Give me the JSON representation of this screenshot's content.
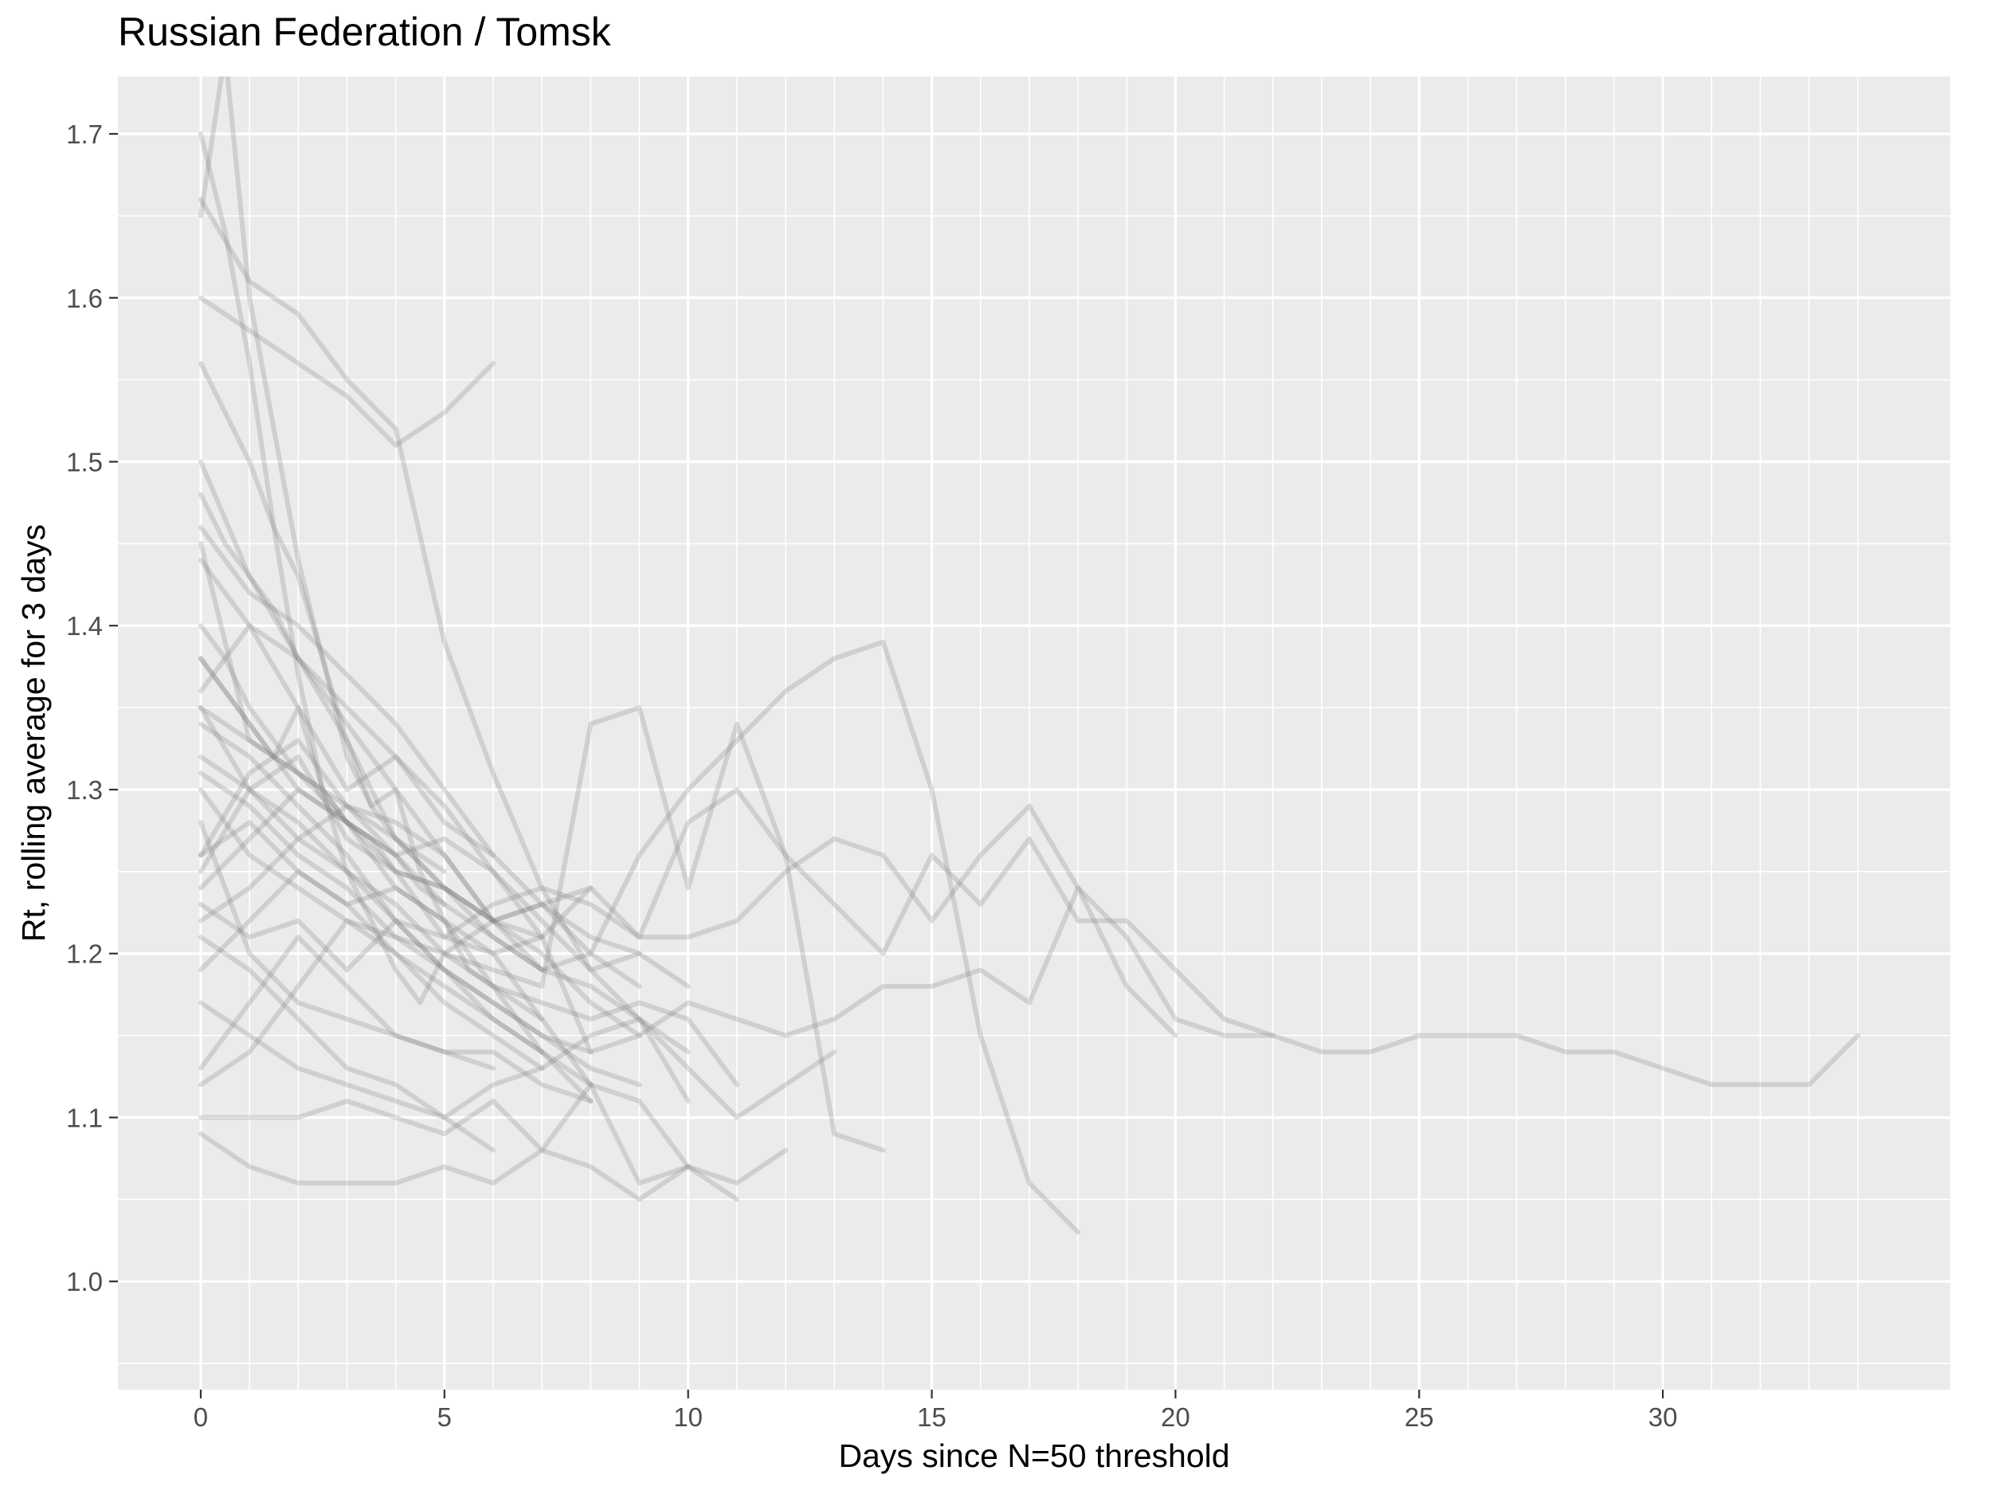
{
  "chart_data": {
    "type": "line",
    "title": "Russian Federation / Tomsk",
    "xlabel": "Days since N=50 threshold",
    "ylabel": "Rt, rolling average for 3 days",
    "xlim": [
      -1.7,
      35.9
    ],
    "ylim": [
      0.934,
      1.735
    ],
    "xticks": [
      0,
      5,
      10,
      15,
      20,
      25,
      30
    ],
    "xtick_labels": [
      "0",
      "5",
      "10",
      "15",
      "20",
      "25",
      "30"
    ],
    "yticks": [
      1.0,
      1.1,
      1.2,
      1.3,
      1.4,
      1.5,
      1.6,
      1.7
    ],
    "ytick_labels": [
      "1.0",
      "1.1",
      "1.2",
      "1.3",
      "1.4",
      "1.5",
      "1.6",
      "1.7"
    ],
    "grid": true,
    "legend": "none",
    "colors": {
      "panel": "#ebebeb",
      "grid": "#ffffff",
      "line": "#808080"
    },
    "series": [
      {
        "x": [
          0,
          1,
          2,
          3,
          4,
          5,
          6,
          7,
          8,
          9,
          10,
          11,
          12,
          13,
          14,
          15,
          16,
          17,
          18,
          19,
          20,
          21,
          22,
          23,
          24,
          25,
          26,
          27,
          28,
          29,
          30,
          31,
          32,
          33,
          34
        ],
        "y": [
          1.45,
          1.33,
          1.31,
          1.28,
          1.25,
          1.21,
          1.23,
          1.24,
          1.23,
          1.21,
          1.21,
          1.22,
          1.25,
          1.27,
          1.26,
          1.22,
          1.26,
          1.29,
          1.24,
          1.21,
          1.16,
          1.15,
          1.15,
          1.14,
          1.14,
          1.15,
          1.15,
          1.15,
          1.14,
          1.14,
          1.13,
          1.12,
          1.12,
          1.12,
          1.15
        ]
      },
      {
        "x": [
          0,
          1,
          2,
          3,
          4,
          5,
          6,
          7,
          8,
          9,
          10,
          11,
          12,
          13,
          14,
          15,
          16,
          17,
          18,
          19,
          20,
          21,
          22
        ],
        "y": [
          1.23,
          1.21,
          1.22,
          1.19,
          1.22,
          1.21,
          1.2,
          1.21,
          1.24,
          1.21,
          1.28,
          1.3,
          1.26,
          1.23,
          1.2,
          1.26,
          1.23,
          1.27,
          1.22,
          1.22,
          1.19,
          1.16,
          1.15
        ]
      },
      {
        "x": [
          0,
          1,
          2,
          3,
          4,
          5,
          6,
          7,
          8,
          9,
          10,
          11,
          12,
          13,
          14,
          15,
          16,
          17,
          18
        ],
        "y": [
          1.5,
          1.43,
          1.38,
          1.33,
          1.27,
          1.24,
          1.21,
          1.19,
          1.2,
          1.26,
          1.3,
          1.33,
          1.36,
          1.38,
          1.39,
          1.3,
          1.15,
          1.06,
          1.03
        ]
      },
      {
        "x": [
          0,
          1,
          2,
          3,
          4,
          5,
          6,
          7,
          8,
          9,
          10,
          11,
          12,
          13,
          14,
          15,
          16,
          17,
          18,
          19,
          20
        ],
        "y": [
          1.35,
          1.3,
          1.28,
          1.25,
          1.22,
          1.19,
          1.17,
          1.15,
          1.14,
          1.15,
          1.17,
          1.16,
          1.15,
          1.16,
          1.18,
          1.18,
          1.19,
          1.17,
          1.24,
          1.18,
          1.15
        ]
      },
      {
        "x": [
          0,
          1,
          2,
          3,
          4,
          5,
          6,
          7,
          8,
          9,
          10,
          11,
          12,
          13,
          14
        ],
        "y": [
          1.3,
          1.26,
          1.24,
          1.22,
          1.21,
          1.2,
          1.19,
          1.18,
          1.34,
          1.35,
          1.24,
          1.34,
          1.26,
          1.09,
          1.08
        ]
      },
      {
        "x": [
          0,
          1,
          2,
          3,
          4,
          5,
          6,
          7,
          8,
          9,
          10
        ],
        "y": [
          1.66,
          1.61,
          1.59,
          1.55,
          1.52,
          1.39,
          1.31,
          1.24,
          1.19,
          1.16,
          1.14
        ]
      },
      {
        "x": [
          0,
          1,
          2,
          3,
          4,
          5,
          6
        ],
        "y": [
          1.6,
          1.58,
          1.56,
          1.54,
          1.51,
          1.53,
          1.56
        ]
      },
      {
        "x": [
          0,
          1,
          2,
          3,
          4,
          5,
          6,
          7,
          8,
          9,
          10,
          11,
          12,
          13
        ],
        "y": [
          1.17,
          1.15,
          1.13,
          1.12,
          1.11,
          1.1,
          1.12,
          1.13,
          1.15,
          1.16,
          1.13,
          1.1,
          1.12,
          1.14
        ]
      },
      {
        "x": [
          0,
          1,
          2,
          3,
          4,
          5,
          6,
          7,
          8,
          9,
          10,
          11,
          12
        ],
        "y": [
          1.09,
          1.07,
          1.06,
          1.06,
          1.06,
          1.07,
          1.06,
          1.08,
          1.07,
          1.05,
          1.07,
          1.06,
          1.08
        ]
      },
      {
        "x": [
          0,
          1,
          2,
          3,
          4,
          5,
          6,
          7,
          8,
          9,
          10,
          11
        ],
        "y": [
          1.1,
          1.1,
          1.1,
          1.11,
          1.1,
          1.09,
          1.11,
          1.08,
          1.12,
          1.11,
          1.07,
          1.05
        ]
      },
      {
        "x": [
          0,
          1,
          2,
          3,
          4,
          5,
          6,
          7,
          8,
          9,
          10
        ],
        "y": [
          1.24,
          1.27,
          1.3,
          1.28,
          1.24,
          1.22,
          1.2,
          1.16,
          1.12,
          1.06,
          1.07
        ]
      },
      {
        "x": [
          0,
          0.5,
          1,
          1.5,
          2,
          2.5,
          3,
          3.5,
          4,
          4.5,
          5,
          5.5,
          6,
          6.5,
          7
        ],
        "y": [
          1.65,
          1.75,
          1.6,
          1.52,
          1.44,
          1.38,
          1.32,
          1.29,
          1.3,
          1.25,
          1.22,
          1.19,
          1.18,
          1.17,
          1.16
        ]
      },
      {
        "x": [
          0,
          0.5,
          1,
          1.5,
          2,
          2.5,
          3,
          3.5,
          4,
          4.5,
          5,
          6,
          7,
          8
        ],
        "y": [
          1.7,
          1.64,
          1.56,
          1.46,
          1.37,
          1.3,
          1.25,
          1.22,
          1.19,
          1.17,
          1.2,
          1.22,
          1.23,
          1.24
        ]
      },
      {
        "x": [
          0,
          0.5,
          1,
          1.5,
          2,
          2.5,
          3,
          3.5,
          4,
          5,
          6,
          7,
          8,
          9
        ],
        "y": [
          1.4,
          1.38,
          1.35,
          1.33,
          1.31,
          1.3,
          1.28,
          1.27,
          1.25,
          1.24,
          1.22,
          1.23,
          1.21,
          1.2
        ]
      },
      {
        "x": [
          0,
          1,
          2,
          3,
          4,
          5,
          6,
          7,
          8,
          9,
          10
        ],
        "y": [
          1.38,
          1.34,
          1.3,
          1.28,
          1.26,
          1.27,
          1.25,
          1.22,
          1.19,
          1.2,
          1.18
        ]
      },
      {
        "x": [
          0,
          1,
          2,
          3,
          4,
          5,
          6,
          7,
          8,
          9
        ],
        "y": [
          1.22,
          1.24,
          1.27,
          1.29,
          1.28,
          1.26,
          1.22,
          1.2,
          1.17,
          1.15
        ]
      },
      {
        "x": [
          0,
          1,
          2,
          3,
          4,
          5,
          6,
          7,
          8
        ],
        "y": [
          1.36,
          1.4,
          1.35,
          1.3,
          1.32,
          1.29,
          1.25,
          1.21,
          1.14
        ]
      },
      {
        "x": [
          0,
          1,
          2,
          3,
          4,
          5,
          6,
          7
        ],
        "y": [
          1.25,
          1.3,
          1.32,
          1.27,
          1.25,
          1.24,
          1.22,
          1.19
        ]
      },
      {
        "x": [
          0,
          1,
          2,
          3,
          4,
          5,
          6
        ],
        "y": [
          1.13,
          1.17,
          1.21,
          1.18,
          1.15,
          1.14,
          1.13
        ]
      },
      {
        "x": [
          0,
          1,
          2,
          3,
          4,
          5,
          6,
          7,
          8,
          9,
          10,
          11
        ],
        "y": [
          1.32,
          1.3,
          1.27,
          1.25,
          1.23,
          1.2,
          1.18,
          1.17,
          1.16,
          1.17,
          1.16,
          1.12
        ]
      },
      {
        "x": [
          0,
          0.5,
          1,
          1.5,
          2,
          2.5,
          3,
          3.5,
          4,
          5,
          6,
          7
        ],
        "y": [
          1.56,
          1.53,
          1.5,
          1.46,
          1.43,
          1.38,
          1.33,
          1.29,
          1.27,
          1.24,
          1.22,
          1.21
        ]
      },
      {
        "x": [
          0,
          1,
          2,
          3,
          4,
          5,
          6,
          7,
          8
        ],
        "y": [
          1.28,
          1.2,
          1.17,
          1.16,
          1.15,
          1.14,
          1.14,
          1.12,
          1.11
        ]
      },
      {
        "x": [
          0,
          1,
          2,
          3,
          4,
          5,
          6,
          7,
          8,
          9
        ],
        "y": [
          1.44,
          1.4,
          1.38,
          1.35,
          1.32,
          1.28,
          1.26,
          1.23,
          1.2,
          1.18
        ]
      },
      {
        "x": [
          0,
          1,
          2,
          3,
          4,
          5,
          6,
          7
        ],
        "y": [
          1.12,
          1.14,
          1.18,
          1.22,
          1.2,
          1.17,
          1.15,
          1.13
        ]
      },
      {
        "x": [
          0,
          1,
          2,
          3,
          4,
          5,
          6,
          7,
          8,
          9,
          10
        ],
        "y": [
          1.35,
          1.33,
          1.31,
          1.29,
          1.26,
          1.23,
          1.21,
          1.19,
          1.18,
          1.16,
          1.11
        ]
      },
      {
        "x": [
          0,
          1,
          2,
          3,
          4,
          5,
          6,
          7,
          8
        ],
        "y": [
          1.26,
          1.28,
          1.25,
          1.23,
          1.24,
          1.22,
          1.18,
          1.14,
          1.11
        ]
      },
      {
        "x": [
          0,
          0.5,
          1,
          1.5,
          2,
          2.5,
          3,
          3.5,
          4,
          4.5,
          5
        ],
        "y": [
          1.38,
          1.36,
          1.34,
          1.32,
          1.35,
          1.3,
          1.28,
          1.27,
          1.26,
          1.24,
          1.23
        ]
      },
      {
        "x": [
          0,
          1,
          2,
          3,
          4,
          5,
          6
        ],
        "y": [
          1.21,
          1.19,
          1.16,
          1.13,
          1.12,
          1.1,
          1.08
        ]
      },
      {
        "x": [
          0,
          1,
          2,
          3,
          4,
          5,
          6,
          7,
          8,
          9
        ],
        "y": [
          1.31,
          1.29,
          1.26,
          1.24,
          1.21,
          1.19,
          1.17,
          1.15,
          1.13,
          1.12
        ]
      },
      {
        "x": [
          0,
          1,
          2,
          3,
          4,
          5,
          6
        ],
        "y": [
          1.46,
          1.42,
          1.4,
          1.37,
          1.34,
          1.3,
          1.26
        ]
      },
      {
        "x": [
          0,
          1,
          2,
          3,
          4,
          5,
          6,
          7,
          8
        ],
        "y": [
          1.34,
          1.32,
          1.29,
          1.26,
          1.22,
          1.19,
          1.16,
          1.14,
          1.12
        ]
      },
      {
        "x": [
          0,
          0.5,
          1,
          1.5,
          2,
          2.5,
          3,
          3.5,
          4,
          4.5,
          5,
          5.5,
          6
        ],
        "y": [
          1.48,
          1.45,
          1.43,
          1.41,
          1.38,
          1.36,
          1.34,
          1.32,
          1.3,
          1.28,
          1.26,
          1.24,
          1.22
        ]
      },
      {
        "x": [
          0,
          1,
          2,
          3,
          4,
          5,
          6,
          7
        ],
        "y": [
          1.19,
          1.22,
          1.25,
          1.23,
          1.2,
          1.18,
          1.16,
          1.14
        ]
      },
      {
        "x": [
          0,
          1,
          2,
          3,
          4,
          5
        ],
        "y": [
          1.26,
          1.31,
          1.33,
          1.29,
          1.27,
          1.25
        ]
      }
    ]
  }
}
